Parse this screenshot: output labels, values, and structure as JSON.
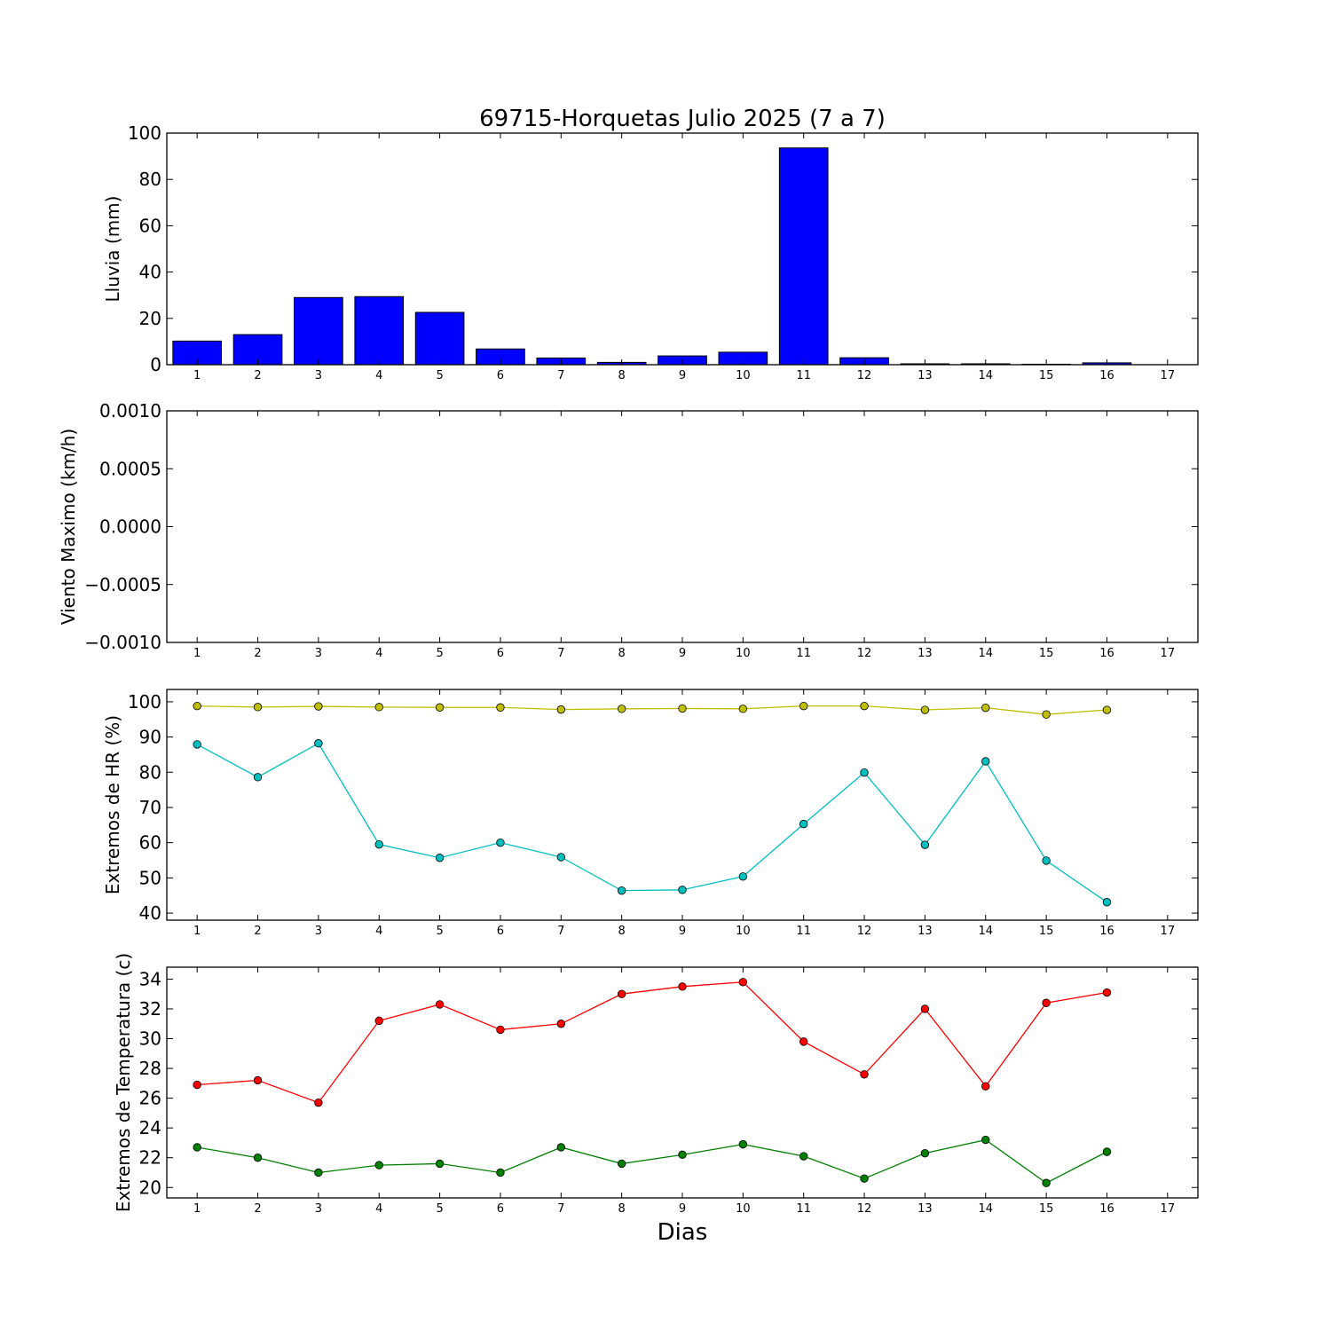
{
  "chart_data": {
    "title": "69715-Horquetas Julio 2025  (7 a 7)",
    "xlabel": "Dias",
    "x": [
      1,
      2,
      3,
      4,
      5,
      6,
      7,
      8,
      9,
      10,
      11,
      12,
      13,
      14,
      15,
      16,
      17
    ],
    "xlim": [
      0.5,
      17.5
    ],
    "panels": [
      {
        "type": "bar",
        "ylabel": "Lluvia (mm)",
        "ylim": [
          0,
          100
        ],
        "yticks": [
          "0",
          "20",
          "40",
          "60",
          "80",
          "100"
        ],
        "ytick_values": [
          0,
          20,
          40,
          60,
          80,
          100
        ],
        "series": [
          {
            "color": "#0000ff",
            "values": [
              10.2,
              13.0,
              29.0,
              29.4,
              22.6,
              6.8,
              2.9,
              1.0,
              3.8,
              5.4,
              93.6,
              3.0,
              0.4,
              0.4,
              0.2,
              0.8,
              0
            ]
          }
        ]
      },
      {
        "type": "line",
        "ylabel": "Viento Maximo (km/h)",
        "ylim": [
          -0.001,
          0.001
        ],
        "yticks": [
          "−0.0010",
          "−0.0005",
          "0.0000",
          "0.0005",
          "0.0010"
        ],
        "ytick_values": [
          -0.001,
          -0.0005,
          0,
          0.0005,
          0.001
        ],
        "series": []
      },
      {
        "type": "line",
        "ylabel": "Extremos de HR (%)",
        "ylim": [
          38,
          103.5
        ],
        "yticks": [
          "40",
          "50",
          "60",
          "70",
          "80",
          "90",
          "100"
        ],
        "ytick_values": [
          40,
          50,
          60,
          70,
          80,
          90,
          100
        ],
        "series": [
          {
            "color": "#bfbf00",
            "values": [
              98.8,
              98.5,
              98.7,
              98.5,
              98.4,
              98.4,
              97.8,
              98.0,
              98.1,
              98.0,
              98.8,
              98.8,
              97.7,
              98.3,
              96.4,
              97.7
            ]
          },
          {
            "color": "#00bfbf",
            "values": [
              87.9,
              78.6,
              88.2,
              59.5,
              55.7,
              60.0,
              55.9,
              46.4,
              46.6,
              50.4,
              65.3,
              79.9,
              59.4,
              83.1,
              54.9,
              43.1
            ]
          }
        ]
      },
      {
        "type": "line",
        "ylabel": "Extremos de Temperatura (c)",
        "ylim": [
          19.3,
          34.8
        ],
        "yticks": [
          "20",
          "22",
          "24",
          "26",
          "28",
          "30",
          "32",
          "34"
        ],
        "ytick_values": [
          20,
          22,
          24,
          26,
          28,
          30,
          32,
          34
        ],
        "series": [
          {
            "color": "#ff0000",
            "values": [
              26.9,
              27.2,
              25.7,
              31.2,
              32.3,
              30.6,
              31.0,
              33.0,
              33.5,
              33.8,
              29.8,
              27.6,
              32.0,
              26.8,
              32.4,
              33.1
            ]
          },
          {
            "color": "#008000",
            "values": [
              22.7,
              22.0,
              21.0,
              21.5,
              21.6,
              21.0,
              22.7,
              21.6,
              22.2,
              22.9,
              22.1,
              20.6,
              22.3,
              23.2,
              20.3,
              22.4
            ]
          }
        ]
      }
    ]
  }
}
